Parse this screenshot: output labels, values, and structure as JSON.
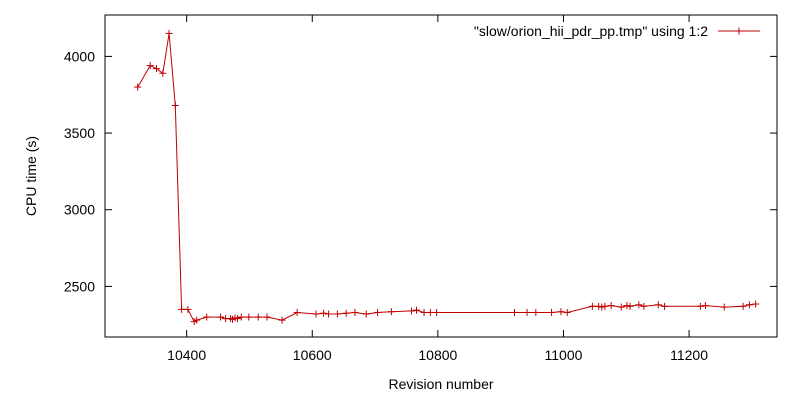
{
  "chart_data": {
    "type": "line",
    "xlabel": "Revision number",
    "ylabel": "CPU time (s)",
    "xlim": [
      10270,
      11340
    ],
    "ylim": [
      2170,
      4270
    ],
    "xticks": [
      10400,
      10600,
      10800,
      11000,
      11200
    ],
    "yticks": [
      2500,
      3000,
      3500,
      4000
    ],
    "xtick_labels": [
      "10400",
      "10600",
      "10800",
      "11000",
      "11200"
    ],
    "ytick_labels": [
      "2500",
      "3000",
      "3500",
      "4000"
    ],
    "legend_position": "top-right",
    "grid": false,
    "series": [
      {
        "name": "\"slow/orion_hii_pdr_pp.tmp\" using 1:2",
        "color": "#c00000",
        "x": [
          10322,
          10342,
          10352,
          10362,
          10372,
          10382,
          10392,
          10402,
          10412,
          10416,
          10432,
          10454,
          10462,
          10470,
          10473,
          10477,
          10481,
          10487,
          10499,
          10514,
          10528,
          10552,
          10576,
          10606,
          10618,
          10626,
          10640,
          10654,
          10668,
          10686,
          10704,
          10726,
          10758,
          10766,
          10778,
          10788,
          10798,
          10922,
          10942,
          10956,
          10981,
          10996,
          11006,
          11046,
          11056,
          11061,
          11066,
          11076,
          11092,
          11101,
          11106,
          11120,
          11128,
          11151,
          11161,
          11218,
          11226,
          11256,
          11286,
          11296,
          11306
        ],
        "y": [
          3800,
          3940,
          3920,
          3890,
          4150,
          3680,
          2350,
          2350,
          2270,
          2280,
          2300,
          2300,
          2290,
          2290,
          2285,
          2295,
          2290,
          2300,
          2300,
          2300,
          2300,
          2280,
          2330,
          2320,
          2325,
          2320,
          2320,
          2325,
          2330,
          2320,
          2330,
          2335,
          2340,
          2345,
          2330,
          2330,
          2330,
          2330,
          2330,
          2330,
          2330,
          2335,
          2330,
          2370,
          2370,
          2365,
          2370,
          2375,
          2365,
          2375,
          2370,
          2380,
          2370,
          2380,
          2370,
          2370,
          2375,
          2365,
          2370,
          2380,
          2385
        ]
      }
    ]
  }
}
